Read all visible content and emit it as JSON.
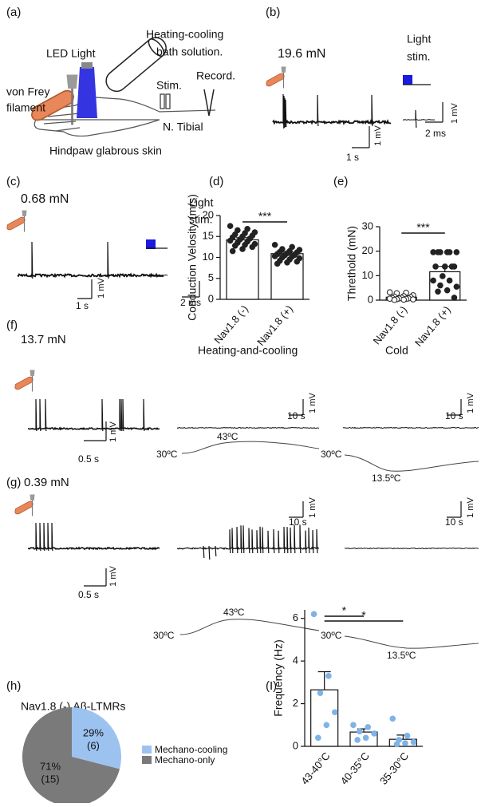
{
  "panels": {
    "a": {
      "label": "(a)",
      "led": "LED Light",
      "bath_line1": "Heating-cooling",
      "bath_line2": "bath solution.",
      "filament_line1": "von Frey",
      "filament_line2": "filament",
      "stim": "Stim.",
      "record": "Record.",
      "nerve": "N. Tibial",
      "skin": "Hindpaw glabrous skin"
    },
    "b": {
      "label": "(b)",
      "force": "19.6 mN",
      "light_line1": "Light",
      "light_line2": "stim.",
      "scale_mv": "1 mV",
      "scale_s": "1 s",
      "scale_mv2": "1 mV",
      "scale_ms": "2 ms"
    },
    "c": {
      "label": "(c)",
      "force": "0.68 mN",
      "light_line1": "Light",
      "light_line2": "stim.",
      "scale_mv": "1 mV",
      "scale_s": "1 s",
      "scale_ms": "2 ms"
    },
    "f": {
      "label": "(f)",
      "force": "13.7 mN",
      "heating": "Heating-and-cooling",
      "cold": "Cold",
      "scale_mv": "1 mV",
      "scale_s": "0.5 s",
      "heat_mv": "1 mV",
      "heat_s": "10 s",
      "cold_mv": "1 mV",
      "cold_s": "10 s",
      "heat_start": "30ºC",
      "heat_peak": "43ºC",
      "cold_start": "30ºC",
      "cold_min": "13.5ºC"
    },
    "g": {
      "label": "(g)",
      "force": "0.39 mN",
      "scale_mv": "1 mV",
      "scale_s": "0.5 s",
      "heat_mv": "1 mV",
      "heat_s": "10 s",
      "cold_mv": "1 mV",
      "cold_s": "10 s",
      "heat_start": "30ºC",
      "heat_peak": "43ºC",
      "cold_start": "30ºC",
      "cold_min": "13.5ºC"
    }
  },
  "chart_data": [
    {
      "type": "bar",
      "panel": "(d)",
      "y_label": "Conduction Velosity (m/s)",
      "categories": [
        "Nav1.8 (-)",
        "Nav1.8 (+)"
      ],
      "values": [
        14.2,
        10.9
      ],
      "errors": [
        0.5,
        0.4
      ],
      "color": "#ffffff",
      "point_color": "#222222",
      "open_points": [
        false,
        false
      ],
      "points": [
        [
          17.5,
          16.8,
          16.5,
          16,
          15.8,
          15.5,
          15.2,
          15,
          14.8,
          14.5,
          14.3,
          14,
          13.8,
          13.5,
          13.2,
          13,
          12.8,
          12.5,
          12,
          11.5
        ],
        [
          13,
          12.5,
          12,
          11.8,
          11.5,
          11.3,
          11.2,
          11,
          10.8,
          10.6,
          10.5,
          10.3,
          10.2,
          10,
          9.8,
          9.5,
          9.2,
          9,
          8.8,
          8.5
        ]
      ],
      "ylim": [
        0,
        20
      ],
      "yticks": [
        0,
        5,
        10,
        15,
        20
      ],
      "comparisons": [
        {
          "pair": [
            0,
            1
          ],
          "label": "***"
        }
      ]
    },
    {
      "type": "bar",
      "panel": "(e)",
      "y_label": "Threthold (mN)",
      "categories": [
        "Nav1.8 (-)",
        "Nav1.8 (+)"
      ],
      "values": [
        1.2,
        11.6
      ],
      "errors": [
        0.3,
        2.2
      ],
      "color": "#ffffff",
      "point_color": "#222222",
      "open_points": [
        true,
        false
      ],
      "points": [
        [
          3.2,
          3,
          2.8,
          2,
          1.6,
          1.4,
          1.2,
          1,
          0.9,
          0.7,
          0.68,
          0.6,
          0.5,
          0.39,
          0.3,
          0.2,
          0.1
        ],
        [
          19.6,
          19.6,
          19.6,
          19.6,
          19.6,
          19.6,
          13.7,
          13.7,
          13.7,
          13.7,
          9.8,
          8,
          8,
          6,
          5.5,
          4,
          3.5,
          1
        ]
      ],
      "ylim": [
        0,
        30
      ],
      "yticks": [
        0,
        10,
        20,
        30
      ],
      "comparisons": [
        {
          "pair": [
            0,
            1
          ],
          "label": "***"
        }
      ]
    },
    {
      "type": "pie",
      "panel": "(h)",
      "title": "Nav1.8 (-) Aβ-LTMRs",
      "categories": [
        "Mechano-cooling",
        "Mechano-only"
      ],
      "values": [
        29,
        71
      ],
      "value_labels": [
        "29%",
        "71%"
      ],
      "counts": [
        {
          "value": 6,
          "label": "(6)"
        },
        {
          "value": 15,
          "label": "(15)"
        }
      ],
      "colors": [
        "#9cc3f0",
        "#7a7a7a"
      ]
    },
    {
      "type": "bar",
      "panel": "(I)",
      "y_label": "Frequency (Hz)",
      "categories": [
        "43-40°C",
        "40-35°C",
        "35-30°C"
      ],
      "values": [
        2.65,
        0.67,
        0.33
      ],
      "errors": [
        0.85,
        0.15,
        0.2
      ],
      "color": "#ffffff",
      "point_color": "#7fb3e8",
      "open_points": [
        false,
        false,
        false
      ],
      "points": [
        [
          6.2,
          3.3,
          2.5,
          1.6,
          1,
          0.4
        ],
        [
          1,
          0.9,
          0.7,
          0.6,
          0.4,
          0.3
        ],
        [
          1.3,
          0.5,
          0.3,
          0.2,
          0.15,
          0.1
        ]
      ],
      "ylim": [
        0,
        6.4
      ],
      "yticks": [
        0,
        2,
        4,
        6
      ],
      "comparisons": [
        {
          "pair": [
            0,
            1
          ],
          "label": "*"
        },
        {
          "pair": [
            0,
            2
          ],
          "label": "*"
        }
      ]
    }
  ]
}
